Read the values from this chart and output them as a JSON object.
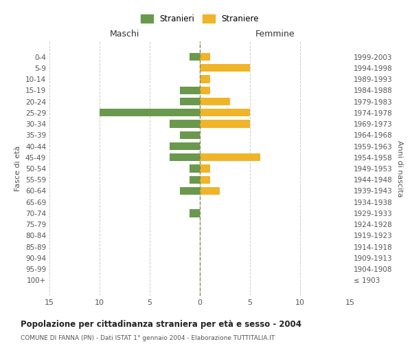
{
  "age_groups": [
    "100+",
    "95-99",
    "90-94",
    "85-89",
    "80-84",
    "75-79",
    "70-74",
    "65-69",
    "60-64",
    "55-59",
    "50-54",
    "45-49",
    "40-44",
    "35-39",
    "30-34",
    "25-29",
    "20-24",
    "15-19",
    "10-14",
    "5-9",
    "0-4"
  ],
  "birth_years": [
    "≤ 1903",
    "1904-1908",
    "1909-1913",
    "1914-1918",
    "1919-1923",
    "1924-1928",
    "1929-1933",
    "1934-1938",
    "1939-1943",
    "1944-1948",
    "1949-1953",
    "1954-1958",
    "1959-1963",
    "1964-1968",
    "1969-1973",
    "1974-1978",
    "1979-1983",
    "1984-1988",
    "1989-1993",
    "1994-1998",
    "1999-2003"
  ],
  "males": [
    0,
    0,
    0,
    0,
    0,
    0,
    1,
    0,
    2,
    1,
    1,
    3,
    3,
    2,
    3,
    10,
    2,
    2,
    0,
    0,
    1
  ],
  "females": [
    0,
    0,
    0,
    0,
    0,
    0,
    0,
    0,
    2,
    1,
    1,
    6,
    0,
    0,
    5,
    5,
    3,
    1,
    1,
    5,
    1
  ],
  "male_color": "#6a994e",
  "female_color": "#f0b429",
  "xlim": 15,
  "title": "Popolazione per cittadinanza straniera per età e sesso - 2004",
  "subtitle": "COMUNE DI FANNA (PN) - Dati ISTAT 1° gennaio 2004 - Elaborazione TUTTITALIA.IT",
  "ylabel_left": "Fasce di età",
  "ylabel_right": "Anni di nascita",
  "label_maschi": "Maschi",
  "label_femmine": "Femmine",
  "legend_stranieri": "Stranieri",
  "legend_straniere": "Straniere",
  "bg_color": "#ffffff",
  "grid_color": "#cccccc",
  "text_color": "#555555"
}
